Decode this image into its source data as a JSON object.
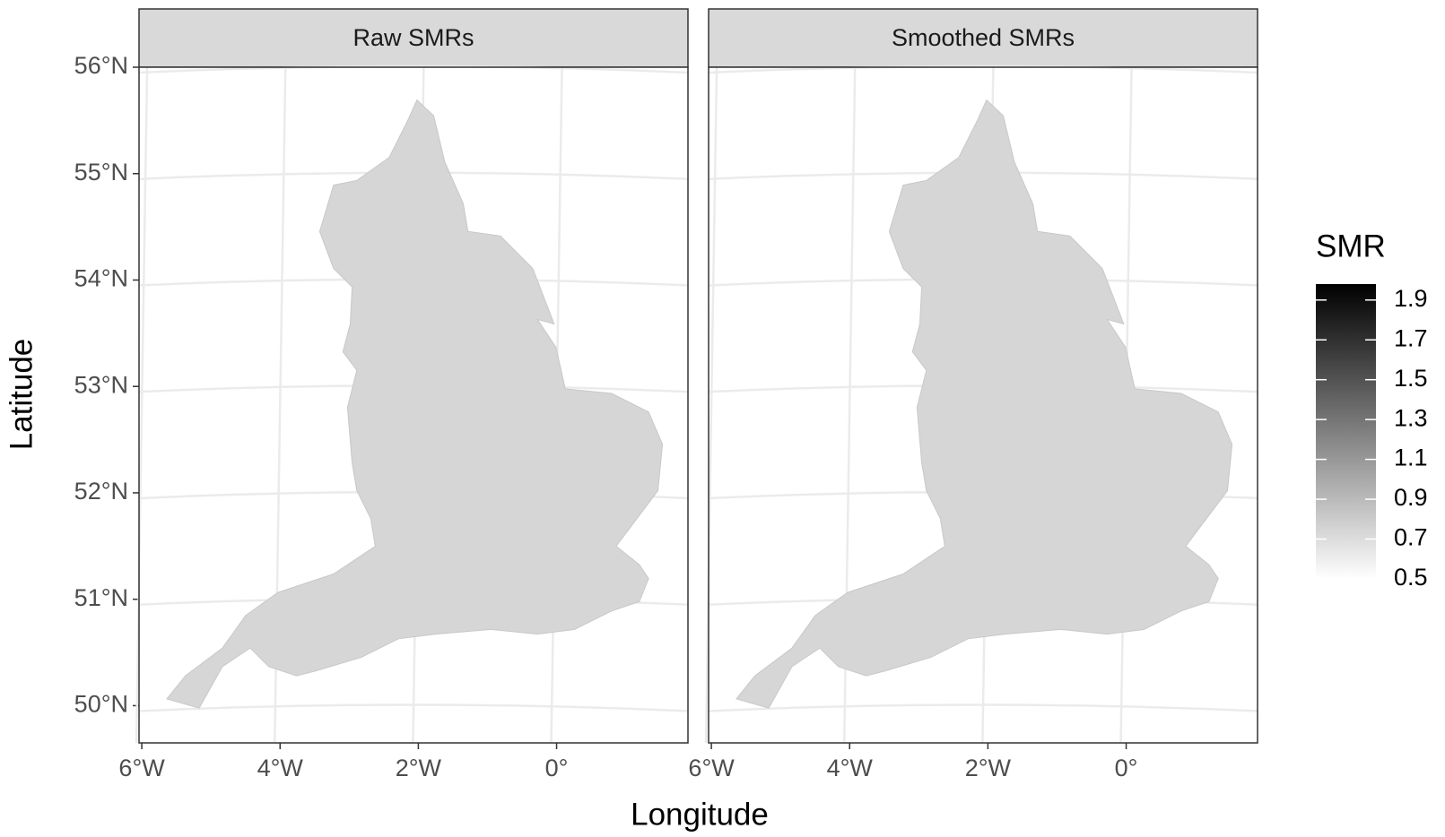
{
  "panels": [
    {
      "title": "Raw SMRs"
    },
    {
      "title": "Smoothed SMRs"
    }
  ],
  "xlabel": "Longitude",
  "ylabel": "Latitude",
  "xlim": [
    -6.04,
    1.9
  ],
  "ylim": [
    49.65,
    56.0
  ],
  "xticks": [
    {
      "value": -6,
      "label": "6°W"
    },
    {
      "value": -4,
      "label": "4°W"
    },
    {
      "value": -2,
      "label": "2°W"
    },
    {
      "value": 0,
      "label": "0°"
    }
  ],
  "yticks": [
    {
      "value": 50,
      "label": "50°N"
    },
    {
      "value": 51,
      "label": "51°N"
    },
    {
      "value": 52,
      "label": "52°N"
    },
    {
      "value": 53,
      "label": "53°N"
    },
    {
      "value": 54,
      "label": "54°N"
    },
    {
      "value": 55,
      "label": "55°N"
    },
    {
      "value": 56,
      "label": "56°N"
    }
  ],
  "legend": {
    "title": "SMR",
    "lim": [
      0.5,
      1.98
    ],
    "ticks": [
      0.5,
      0.7,
      0.9,
      1.1,
      1.3,
      1.5,
      1.7,
      1.9
    ]
  }
}
